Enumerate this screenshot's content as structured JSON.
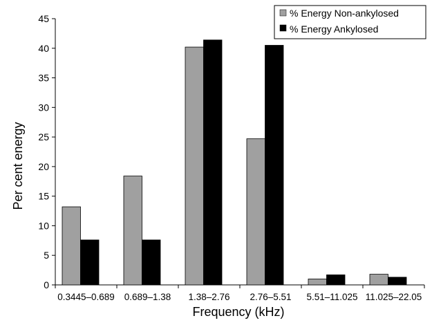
{
  "chart_data": {
    "type": "bar",
    "title": "",
    "xlabel": "Frequency (kHz)",
    "ylabel": "Per cent energy",
    "ylim": [
      0,
      45
    ],
    "yticks": [
      0,
      5,
      10,
      15,
      20,
      25,
      30,
      35,
      40,
      45
    ],
    "grid": false,
    "legend_position": "top-right",
    "categories": [
      "0.3445–0.689",
      "0.689–1.38",
      "1.38–2.76",
      "2.76–5.51",
      "5.51–11.025",
      "11.025–22.05"
    ],
    "series": [
      {
        "name": "% Energy Non-ankylosed",
        "color": "#a0a0a0",
        "values": [
          13.2,
          18.4,
          40.2,
          24.7,
          1.0,
          1.8
        ]
      },
      {
        "name": "% Energy Ankylosed",
        "color": "#000000",
        "values": [
          7.6,
          7.6,
          41.4,
          40.5,
          1.7,
          1.3
        ]
      }
    ]
  }
}
